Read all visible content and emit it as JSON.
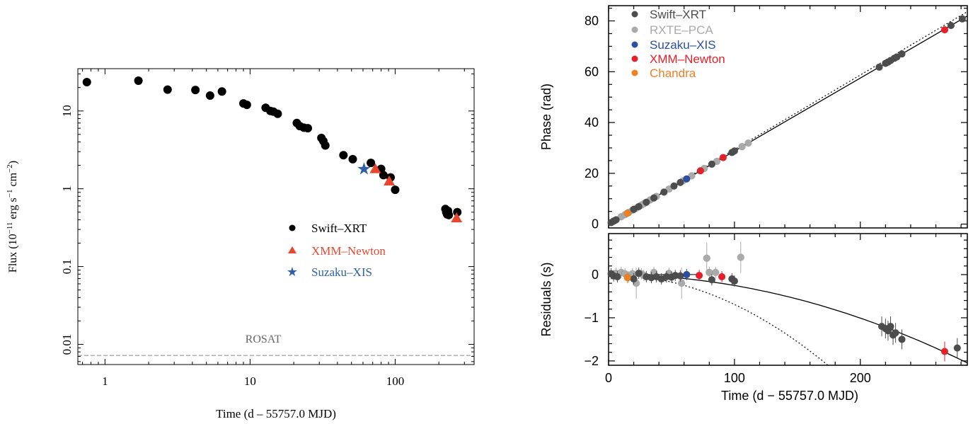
{
  "colors": {
    "swift_left": "#000000",
    "xmm_left": "#e8472f",
    "suzaku_left": "#2e5fa8",
    "rosat_line": "#888888",
    "swift_right": "#4d4d4d",
    "rxte_right": "#aaaaaa",
    "suzaku_right": "#2d4fa1",
    "xmm_right": "#e5202a",
    "chandra_right": "#f07f20"
  },
  "chart_data": [
    {
      "type": "scatter",
      "xlabel": "Time (d – 55757.0 MJD)",
      "ylabel_main": "Flux (10",
      "ylabel_sup1": "−11",
      "ylabel_mid": " erg s",
      "ylabel_sup2": "−1",
      "ylabel_mid2": " cm",
      "ylabel_sup3": "−2",
      "ylabel_end": ")",
      "xscale": "log",
      "yscale": "log",
      "xlim": [
        0.65,
        350
      ],
      "ylim": [
        0.0055,
        35
      ],
      "xticks": [
        1,
        10,
        100
      ],
      "xtick_labels": [
        "1",
        "10",
        "100"
      ],
      "yticks": [
        0.01,
        0.1,
        1,
        10
      ],
      "ytick_labels": [
        "0.01",
        "0.1",
        "1",
        "10"
      ],
      "legend_position": "center-right",
      "legend": [
        "Swift–XRT",
        "XMM–Newton",
        "Suzaku–XIS"
      ],
      "annotation": "ROSAT",
      "rosat_level": 0.0072,
      "series": [
        {
          "name": "Swift–XRT",
          "marker": "circle",
          "points": [
            [
              0.75,
              23.5
            ],
            [
              1.7,
              24.5
            ],
            [
              2.7,
              18.8
            ],
            [
              4.2,
              18.6
            ],
            [
              5.3,
              15.8
            ],
            [
              6.4,
              17.8
            ],
            [
              9.0,
              12.5
            ],
            [
              9.5,
              12.0
            ],
            [
              12.8,
              11.0
            ],
            [
              13.8,
              10.0
            ],
            [
              14.5,
              9.8
            ],
            [
              15.5,
              9.2
            ],
            [
              21.0,
              7.0
            ],
            [
              22.0,
              6.4
            ],
            [
              23.5,
              6.1
            ],
            [
              25.0,
              6.0
            ],
            [
              31.0,
              4.5
            ],
            [
              32.0,
              4.1
            ],
            [
              33.0,
              3.6
            ],
            [
              44.0,
              2.7
            ],
            [
              51.0,
              2.4
            ],
            [
              68.0,
              2.15
            ],
            [
              80.0,
              1.8
            ],
            [
              83.0,
              1.5
            ],
            [
              93.0,
              1.4
            ],
            [
              100.0,
              0.97
            ],
            [
              222.0,
              0.55
            ],
            [
              225.0,
              0.5
            ],
            [
              228.0,
              0.47
            ],
            [
              231.0,
              0.52
            ],
            [
              234.0,
              0.46
            ],
            [
              268.0,
              0.5
            ]
          ]
        },
        {
          "name": "XMM–Newton",
          "marker": "triangle",
          "points": [
            [
              73.0,
              1.8
            ],
            [
              91.0,
              1.25
            ],
            [
              265.0,
              0.42
            ]
          ]
        },
        {
          "name": "Suzaku–XIS",
          "marker": "star",
          "points": [
            [
              61.0,
              1.8
            ]
          ]
        }
      ]
    },
    {
      "type": "scatter",
      "xlabel": "Time (d − 55757.0 MJD)",
      "xlim": [
        0,
        285
      ],
      "xticks": [
        0,
        100,
        200
      ],
      "xtick_labels": [
        "0",
        "100",
        "200"
      ],
      "legend_position": "top-left",
      "legend": [
        "Swift–XRT",
        "RXTE–PCA",
        "Suzaku–XIS",
        "XMM–Newton",
        "Chandra"
      ],
      "top": {
        "ylabel": "Phase (rad)",
        "ylim": [
          -1.5,
          86
        ],
        "yticks": [
          0,
          20,
          40,
          60,
          80
        ],
        "ytick_labels": [
          "0",
          "20",
          "40",
          "60",
          "80"
        ],
        "fit_slope": 0.2875,
        "dotted_slope": 0.2935,
        "series": [
          {
            "name": "Swift–XRT",
            "points": [
              [
                2,
                0.6
              ],
              [
                4,
                1.2
              ],
              [
                6,
                1.7
              ],
              [
                20,
                5.8
              ],
              [
                24,
                6.9
              ],
              [
                30,
                8.6
              ],
              [
                36,
                10.3
              ],
              [
                44,
                12.6
              ],
              [
                52,
                15.0
              ],
              [
                57,
                16.4
              ],
              [
                82,
                23.6
              ],
              [
                98,
                28.2
              ],
              [
                100,
                28.8
              ],
              [
                215,
                61.8
              ],
              [
                220,
                63.3
              ],
              [
                222,
                63.8
              ],
              [
                224,
                64.4
              ],
              [
                227,
                65.3
              ],
              [
                229,
                65.8
              ],
              [
                233,
                67.0
              ],
              [
                272,
                78.2
              ],
              [
                281,
                80.8
              ]
            ]
          },
          {
            "name": "RXTE–PCA",
            "points": [
              [
                5,
                1.4
              ],
              [
                10,
                2.9
              ],
              [
                13,
                3.7
              ],
              [
                16,
                4.6
              ],
              [
                19,
                5.5
              ],
              [
                22,
                6.3
              ],
              [
                26,
                7.5
              ],
              [
                28,
                8.0
              ],
              [
                33,
                9.5
              ],
              [
                38,
                10.9
              ],
              [
                48,
                13.8
              ],
              [
                59,
                17.0
              ],
              [
                66,
                19.0
              ],
              [
                76,
                21.9
              ],
              [
                86,
                24.7
              ],
              [
                106,
                30.5
              ],
              [
                111,
                31.9
              ]
            ]
          },
          {
            "name": "Suzaku–XIS",
            "points": [
              [
                62,
                17.8
              ]
            ]
          },
          {
            "name": "XMM–Newton",
            "points": [
              [
                73,
                21.0
              ],
              [
                91,
                26.2
              ],
              [
                267,
                76.5
              ]
            ]
          },
          {
            "name": "Chandra",
            "points": [
              [
                15,
                4.3
              ]
            ]
          }
        ]
      },
      "bottom": {
        "ylabel": "Residuals (s)",
        "ylim": [
          -2.1,
          0.95
        ],
        "yticks": [
          -2,
          -1,
          0
        ],
        "ytick_labels": [
          "−2",
          "−1",
          "0"
        ],
        "curve_coef": -2.52e-05,
        "dotted_coef": -6.92e-05,
        "series": [
          {
            "name": "Swift–XRT",
            "points": [
              [
                2,
                0.02
              ],
              [
                4,
                -0.03
              ],
              [
                7,
                -0.05
              ],
              [
                20,
                -0.1
              ],
              [
                24,
                0.03
              ],
              [
                30,
                -0.05
              ],
              [
                34,
                -0.07
              ],
              [
                38,
                -0.05
              ],
              [
                42,
                -0.1
              ],
              [
                46,
                -0.05
              ],
              [
                50,
                -0.06
              ],
              [
                53,
                -0.02
              ],
              [
                57,
                -0.03
              ],
              [
                82,
                -0.12
              ],
              [
                98,
                -0.1
              ],
              [
                100,
                -0.15
              ],
              [
                217,
                -1.2
              ],
              [
                220,
                -1.25
              ],
              [
                222,
                -1.3
              ],
              [
                224,
                -1.2
              ],
              [
                226,
                -1.4
              ],
              [
                228,
                -1.35
              ],
              [
                233,
                -1.5
              ],
              [
                277,
                -1.7
              ]
            ]
          },
          {
            "name": "RXTE–PCA",
            "points": [
              [
                6,
                0.03
              ],
              [
                10,
                0.05
              ],
              [
                13,
                0.02
              ],
              [
                16,
                -0.05
              ],
              [
                19,
                0.02
              ],
              [
                22,
                -0.2
              ],
              [
                26,
                0.02
              ],
              [
                28,
                -0.02
              ],
              [
                36,
                0.05
              ],
              [
                48,
                0.03
              ],
              [
                58,
                -0.2
              ],
              [
                78,
                0.38
              ],
              [
                80,
                0.05
              ],
              [
                85,
                0.05
              ],
              [
                105,
                0.4
              ]
            ]
          },
          {
            "name": "Suzaku–XIS",
            "points": [
              [
                62,
                0.0
              ]
            ]
          },
          {
            "name": "XMM–Newton",
            "points": [
              [
                72,
                -0.02
              ],
              [
                90,
                -0.05
              ],
              [
                267,
                -1.78
              ]
            ]
          },
          {
            "name": "Chandra",
            "points": [
              [
                15,
                -0.07
              ]
            ]
          }
        ]
      }
    }
  ]
}
